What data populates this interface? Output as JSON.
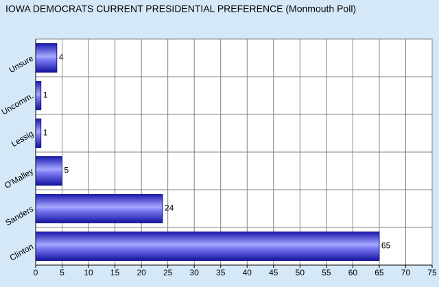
{
  "chart_data": {
    "type": "bar",
    "orientation": "horizontal",
    "title": "IOWA DEMOCRATS CURRENT PRESIDENTIAL PREFERENCE (Monmouth Poll)",
    "categories": [
      "Unsure",
      "Uncomm.",
      "Lessig",
      "O'Malley",
      "Sanders",
      "Clinton"
    ],
    "values": [
      4,
      1,
      1,
      5,
      24,
      65
    ],
    "color": "#2a2ad8",
    "xlim": [
      0,
      75
    ],
    "xticks": [
      0,
      5,
      10,
      15,
      20,
      25,
      30,
      35,
      40,
      45,
      50,
      55,
      60,
      65,
      70,
      75
    ],
    "grid": true
  }
}
